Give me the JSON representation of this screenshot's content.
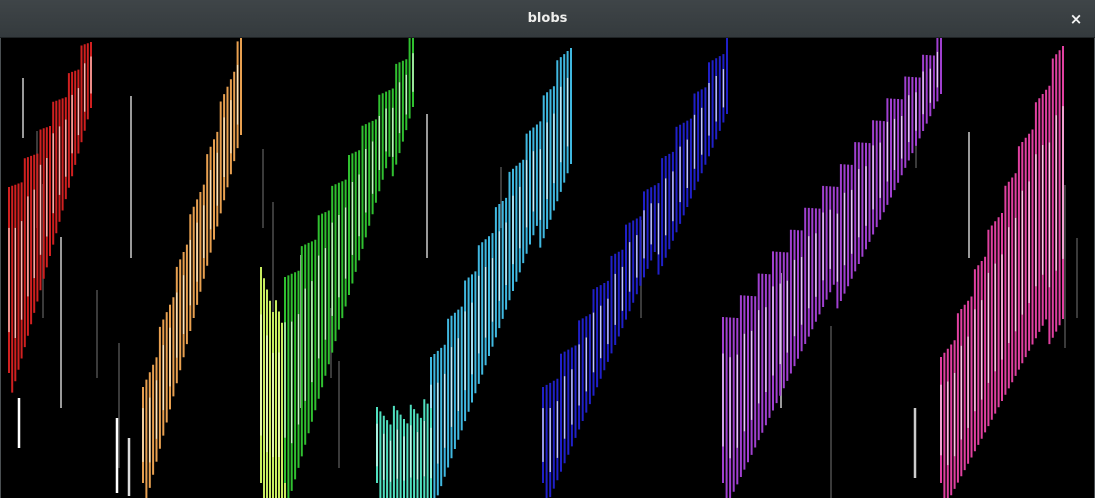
{
  "window": {
    "title": "blobs",
    "close_glyph": "×"
  },
  "blobs": [
    {
      "name": "red",
      "color": "#d02020",
      "glow": "#ffd6d0"
    },
    {
      "name": "orange",
      "color": "#e8a050",
      "glow": "#fff0d0"
    },
    {
      "name": "lime",
      "color": "#c8ec60",
      "glow": "#f4ffd8"
    },
    {
      "name": "green",
      "color": "#30c030",
      "glow": "#e0ffe0"
    },
    {
      "name": "cyan",
      "color": "#40b8e0",
      "glow": "#e0f8ff"
    },
    {
      "name": "teal",
      "color": "#50e0c0",
      "glow": "#e0fff8"
    },
    {
      "name": "blue",
      "color": "#2020c8",
      "glow": "#e0e4ff"
    },
    {
      "name": "purple",
      "color": "#a040d0",
      "glow": "#f4e0ff"
    },
    {
      "name": "pink",
      "color": "#e040a0",
      "glow": "#ffe0f2"
    }
  ]
}
